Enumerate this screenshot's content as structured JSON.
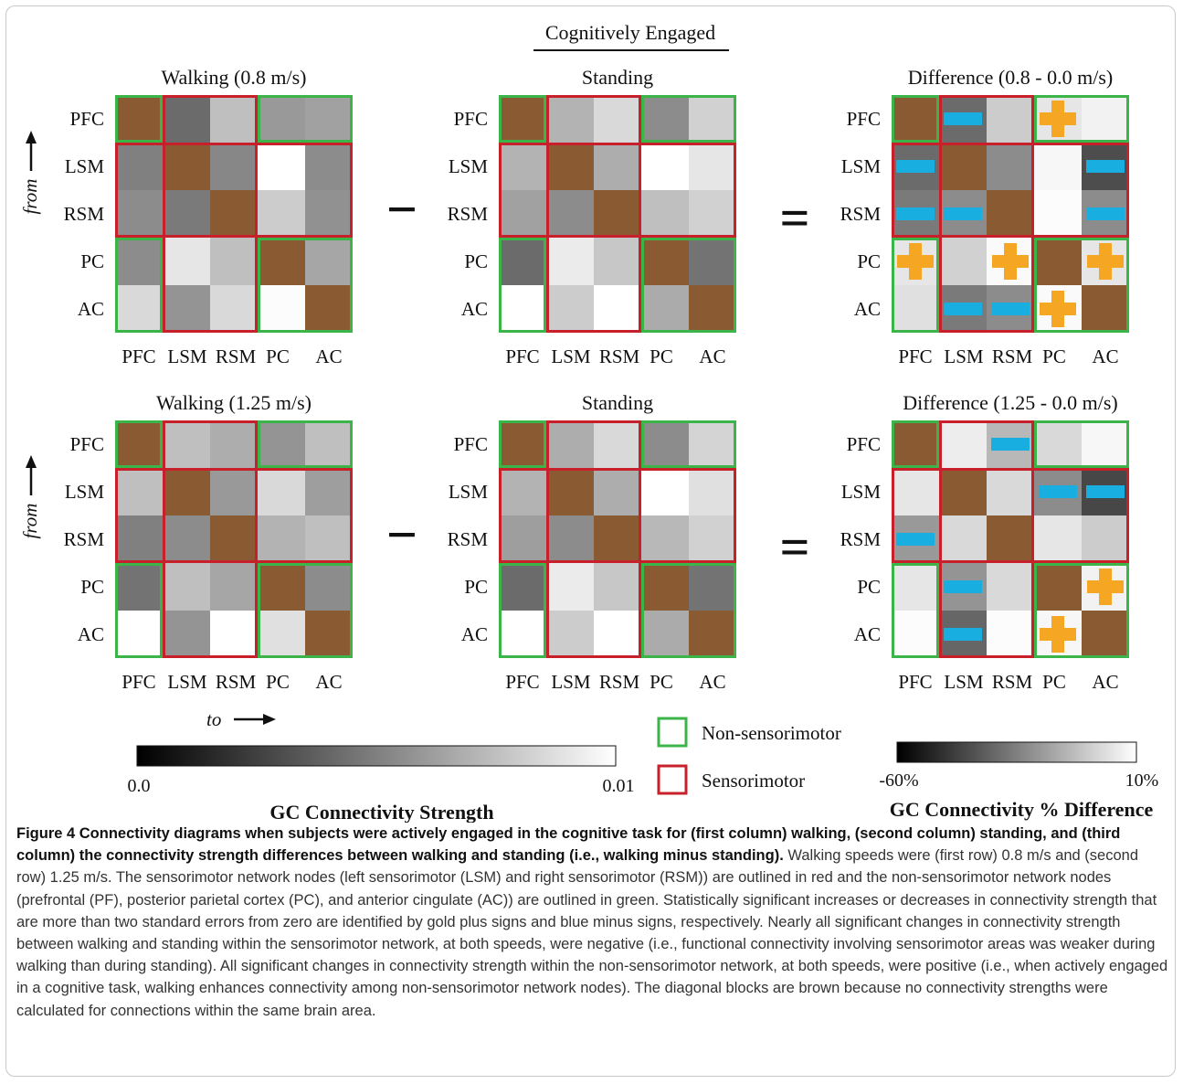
{
  "figure": {
    "section_title": "Cognitively Engaged",
    "node_labels": [
      "PFC",
      "LSM",
      "RSM",
      "PC",
      "AC"
    ],
    "minus_symbol": "−",
    "equals_symbol": "=",
    "axis_from_label": "from",
    "axis_to_label": "to",
    "panels": [
      {
        "id": "walk-08",
        "title": "Walking (0.8 m/s)",
        "type": "strength",
        "cells": [
          [
            null,
            0.42,
            0.75,
            0.6,
            0.63
          ],
          [
            0.5,
            null,
            0.53,
            1.0,
            0.55
          ],
          [
            0.55,
            0.48,
            null,
            0.8,
            0.57
          ],
          [
            0.55,
            0.9,
            0.75,
            null,
            0.65
          ],
          [
            0.85,
            0.58,
            0.85,
            0.99,
            null
          ]
        ]
      },
      {
        "id": "stand-08",
        "title": "Standing",
        "type": "strength",
        "cells": [
          [
            null,
            0.7,
            0.85,
            0.55,
            0.82
          ],
          [
            0.7,
            null,
            0.68,
            1.0,
            0.9
          ],
          [
            0.63,
            0.55,
            null,
            0.75,
            0.82
          ],
          [
            0.42,
            0.92,
            0.78,
            null,
            0.45
          ],
          [
            1.0,
            0.8,
            1.0,
            0.67,
            null
          ]
        ]
      },
      {
        "id": "diff-08",
        "title": "Difference (0.8 - 0.0 m/s)",
        "type": "difference",
        "cells": [
          [
            null,
            0.42,
            0.8,
            0.9,
            0.95
          ],
          [
            0.42,
            null,
            0.55,
            0.97,
            0.3
          ],
          [
            0.48,
            0.55,
            null,
            0.99,
            0.55
          ],
          [
            0.9,
            0.82,
            0.98,
            null,
            0.9
          ],
          [
            0.88,
            0.48,
            0.55,
            0.98,
            null
          ]
        ],
        "markers": [
          [
            "",
            "-",
            "",
            "+",
            ""
          ],
          [
            "-",
            "",
            "",
            "",
            "-"
          ],
          [
            "-",
            "-",
            "",
            "",
            "-"
          ],
          [
            "+",
            "",
            "+",
            "",
            "+"
          ],
          [
            "",
            "-",
            "-",
            "+",
            ""
          ]
        ]
      },
      {
        "id": "walk-125",
        "title": "Walking (1.25 m/s)",
        "type": "strength",
        "cells": [
          [
            null,
            0.75,
            0.68,
            0.58,
            0.75
          ],
          [
            0.75,
            null,
            0.6,
            0.85,
            0.62
          ],
          [
            0.5,
            0.55,
            null,
            0.7,
            0.75
          ],
          [
            0.45,
            0.75,
            0.65,
            null,
            0.55
          ],
          [
            1.0,
            0.58,
            1.0,
            0.88,
            null
          ]
        ]
      },
      {
        "id": "stand-125",
        "title": "Standing",
        "type": "strength",
        "cells": [
          [
            null,
            0.68,
            0.85,
            0.55,
            0.83
          ],
          [
            0.7,
            null,
            0.68,
            1.0,
            0.88
          ],
          [
            0.62,
            0.55,
            null,
            0.72,
            0.82
          ],
          [
            0.42,
            0.92,
            0.78,
            null,
            0.45
          ],
          [
            1.0,
            0.8,
            1.0,
            0.67,
            null
          ]
        ]
      },
      {
        "id": "diff-125",
        "title": "Difference (1.25 - 0.0 m/s)",
        "type": "difference",
        "cells": [
          [
            null,
            0.93,
            0.72,
            0.85,
            0.97
          ],
          [
            0.9,
            null,
            0.85,
            0.55,
            0.28
          ],
          [
            0.6,
            0.85,
            null,
            0.9,
            0.8
          ],
          [
            0.9,
            0.58,
            0.85,
            null,
            0.95
          ],
          [
            0.99,
            0.4,
            0.99,
            0.97,
            null
          ]
        ],
        "markers": [
          [
            "",
            "",
            "-",
            "",
            ""
          ],
          [
            "",
            "",
            "",
            "-",
            "-"
          ],
          [
            "-",
            "",
            "",
            "",
            ""
          ],
          [
            "",
            "-",
            "",
            "",
            "+"
          ],
          [
            "",
            "-",
            "",
            "+",
            ""
          ]
        ]
      }
    ],
    "legend": {
      "strength_bar": {
        "min_label": "0.0",
        "max_label": "0.01",
        "title": "GC Connectivity Strength",
        "range": [
          0.0,
          0.01
        ]
      },
      "difference_bar": {
        "min_label": "-60%",
        "max_label": "10%",
        "title": "GC Connectivity % Difference",
        "range": [
          -60,
          10
        ]
      },
      "boxes": [
        {
          "label": "Non-sensorimotor",
          "color": "#3bb54a"
        },
        {
          "label": "Sensorimotor",
          "color": "#c8202a"
        }
      ]
    },
    "colors": {
      "diagonal": "#8a5a32",
      "non_sensorimotor_outline": "#3bb54a",
      "sensorimotor_outline": "#c8202a",
      "plus_marker": "#f5a623",
      "minus_marker": "#19aee0"
    }
  },
  "caption": {
    "bold": "Figure 4 Connectivity diagrams when subjects were actively engaged in the cognitive task for (first column) walking, (second column) standing, and (third column) the connectivity strength differences between walking and standing (i.e., walking minus standing).",
    "body": "Walking speeds were (first row) 0.8 m/s and (second row) 1.25 m/s. The sensorimotor network nodes (left sensorimotor (LSM) and right sensorimotor (RSM)) are outlined in red and the non-sensorimotor network nodes (prefrontal (PF), posterior parietal cortex (PC), and anterior cingulate (AC)) are outlined in green. Statistically significant increases or decreases in connectivity strength that are more than two standard errors from zero are identified by gold plus signs and blue minus signs, respectively. Nearly all significant changes in connectivity strength between walking and standing within the sensorimotor network, at both speeds, were negative (i.e., functional connectivity involving sensorimotor areas was weaker during walking than during standing). All significant changes in connectivity strength within the non-sensorimotor network, at both speeds, were positive (i.e., when actively engaged in a cognitive task, walking enhances connectivity among non-sensorimotor network nodes). The diagonal blocks are brown because no connectivity strengths were calculated for connections within the same brain area."
  }
}
